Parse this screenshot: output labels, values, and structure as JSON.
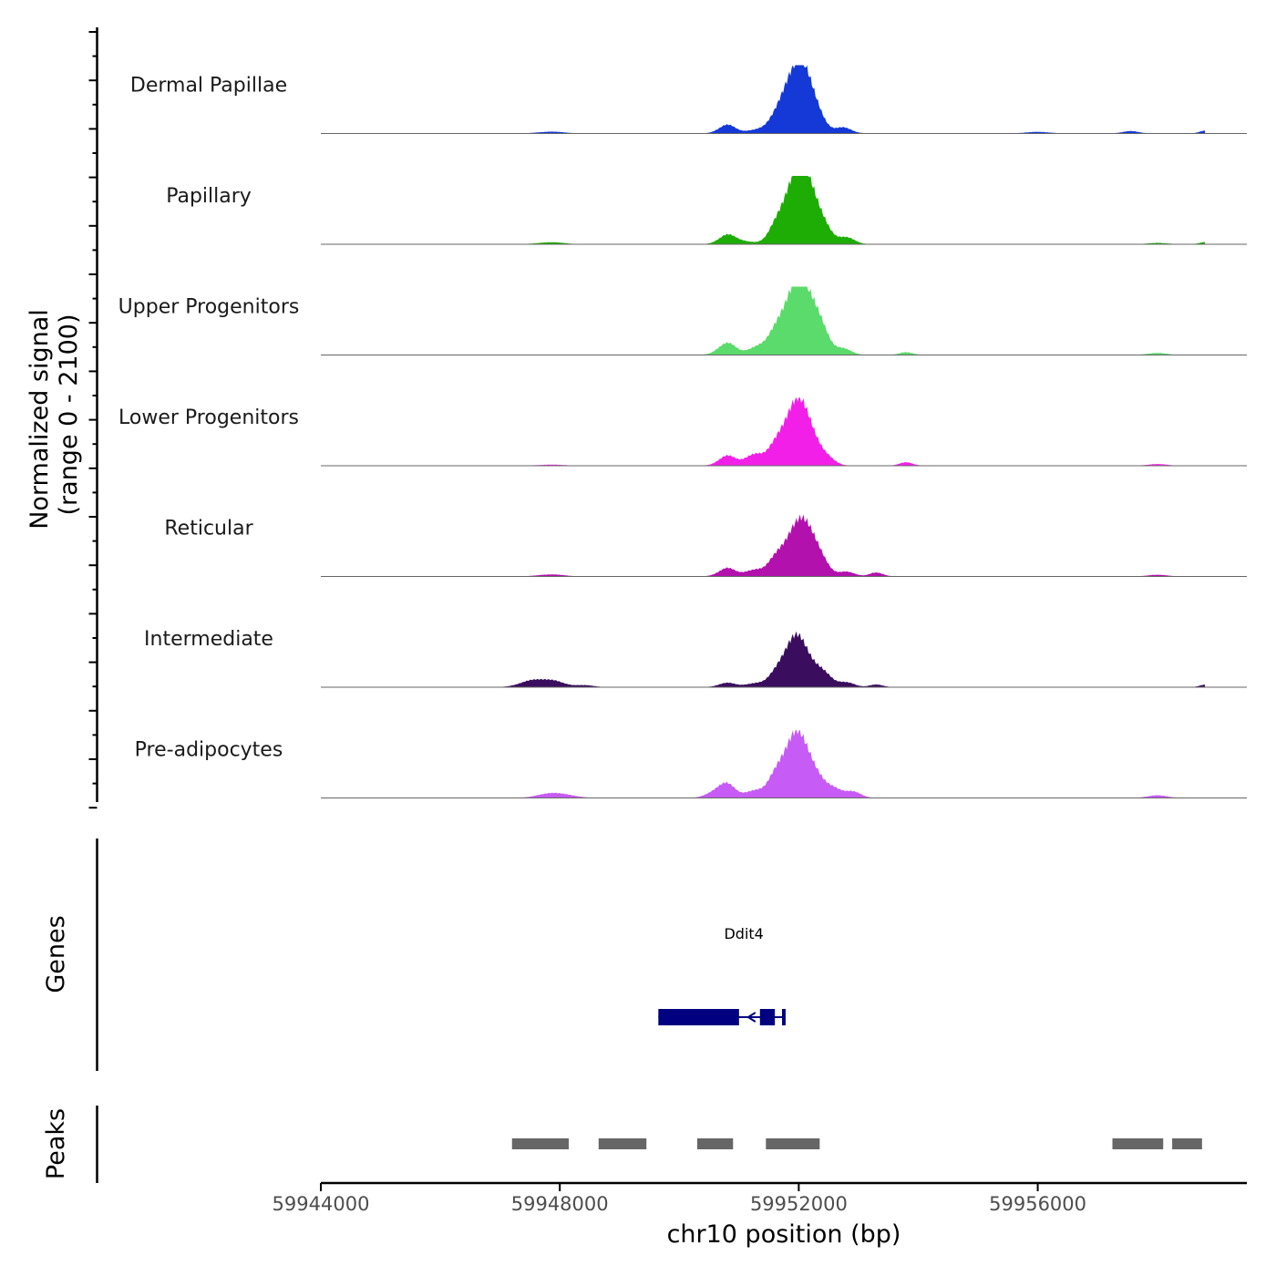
{
  "chart_data": {
    "type": "area",
    "title": "",
    "chromosome": "chr10",
    "xlabel": "chr10 position (bp)",
    "ylabel_line1": "Normalized signal",
    "ylabel_line2": "(range 0 - 2100)",
    "xlim": [
      59944000,
      59959500
    ],
    "ylim": [
      0,
      2100
    ],
    "xticks": [
      {
        "value": 59944000,
        "label": "59944000"
      },
      {
        "value": 59948000,
        "label": "59948000"
      },
      {
        "value": 59952000,
        "label": "59952000"
      },
      {
        "value": 59956000,
        "label": "59956000"
      }
    ],
    "series": [
      {
        "name": "Dermal Papillae",
        "color": "#1439D6",
        "peaks": [
          [
            59947850,
            55,
            200
          ],
          [
            59950800,
            260,
            140
          ],
          [
            59951250,
            90,
            150
          ],
          [
            59951900,
            1750,
            230
          ],
          [
            59952150,
            900,
            160
          ],
          [
            59952350,
            180,
            130
          ],
          [
            59952750,
            190,
            130
          ],
          [
            59956000,
            45,
            200
          ],
          [
            59957550,
            70,
            130
          ],
          [
            59958800,
            80,
            90
          ]
        ]
      },
      {
        "name": "Papillary",
        "color": "#1EAD05",
        "peaks": [
          [
            59947850,
            60,
            200
          ],
          [
            59950800,
            280,
            140
          ],
          [
            59951100,
            80,
            150
          ],
          [
            59951600,
            160,
            110
          ],
          [
            59951950,
            2000,
            230
          ],
          [
            59952200,
            900,
            160
          ],
          [
            59952450,
            280,
            130
          ],
          [
            59952800,
            220,
            130
          ],
          [
            59958000,
            40,
            150
          ],
          [
            59958800,
            60,
            90
          ]
        ]
      },
      {
        "name": "Upper Progenitors",
        "color": "#5BDB6B",
        "peaks": [
          [
            59950800,
            360,
            150
          ],
          [
            59951300,
            240,
            150
          ],
          [
            59951600,
            280,
            120
          ],
          [
            59951950,
            2100,
            230
          ],
          [
            59952250,
            750,
            160
          ],
          [
            59952400,
            280,
            130
          ],
          [
            59952750,
            200,
            130
          ],
          [
            59953800,
            80,
            110
          ],
          [
            59958000,
            60,
            150
          ]
        ]
      },
      {
        "name": "Lower Progenitors",
        "color": "#F21FE8",
        "peaks": [
          [
            59947850,
            30,
            200
          ],
          [
            59950800,
            300,
            140
          ],
          [
            59951250,
            350,
            150
          ],
          [
            59951600,
            250,
            120
          ],
          [
            59951950,
            1850,
            230
          ],
          [
            59952200,
            400,
            160
          ],
          [
            59952500,
            150,
            130
          ],
          [
            59953800,
            100,
            110
          ],
          [
            59958000,
            50,
            150
          ]
        ]
      },
      {
        "name": "Reticular",
        "color": "#B311AD",
        "peaks": [
          [
            59947850,
            60,
            200
          ],
          [
            59950800,
            250,
            140
          ],
          [
            59951250,
            200,
            150
          ],
          [
            59951600,
            260,
            120
          ],
          [
            59951950,
            1400,
            230
          ],
          [
            59952200,
            700,
            160
          ],
          [
            59952400,
            200,
            130
          ],
          [
            59952800,
            150,
            130
          ],
          [
            59953300,
            120,
            110
          ],
          [
            59958000,
            50,
            150
          ]
        ]
      },
      {
        "name": "Intermediate",
        "color": "#3A0D5E",
        "peaks": [
          [
            59947500,
            160,
            200
          ],
          [
            59947850,
            200,
            200
          ],
          [
            59948400,
            60,
            150
          ],
          [
            59950800,
            130,
            140
          ],
          [
            59951250,
            110,
            150
          ],
          [
            59951600,
            110,
            120
          ],
          [
            59951950,
            1550,
            230
          ],
          [
            59952400,
            350,
            150
          ],
          [
            59952800,
            150,
            130
          ],
          [
            59953300,
            80,
            110
          ],
          [
            59958800,
            70,
            90
          ]
        ]
      },
      {
        "name": "Pre-adipocytes",
        "color": "#C75BF5",
        "peaks": [
          [
            59947850,
            150,
            200
          ],
          [
            59948200,
            50,
            150
          ],
          [
            59950600,
            160,
            150
          ],
          [
            59950800,
            380,
            140
          ],
          [
            59951250,
            220,
            150
          ],
          [
            59951600,
            300,
            120
          ],
          [
            59951950,
            1950,
            230
          ],
          [
            59952300,
            350,
            150
          ],
          [
            59952600,
            230,
            130
          ],
          [
            59952900,
            200,
            130
          ],
          [
            59958000,
            80,
            150
          ]
        ]
      }
    ],
    "genes_track": {
      "title": "Genes",
      "gene_name": "Ddit4",
      "color": "#000080",
      "strand": "-",
      "start": 59949650,
      "end": 59951780,
      "exons": [
        [
          59949650,
          59951000
        ],
        [
          59951350,
          59951600
        ],
        [
          59951720,
          59951780
        ]
      ]
    },
    "peaks_track": {
      "title": "Peaks",
      "color": "#666666",
      "regions": [
        [
          59947200,
          59948150
        ],
        [
          59948650,
          59949450
        ],
        [
          59950300,
          59950900
        ],
        [
          59951450,
          59952350
        ],
        [
          59957250,
          59958100
        ],
        [
          59958250,
          59958750
        ]
      ]
    }
  }
}
